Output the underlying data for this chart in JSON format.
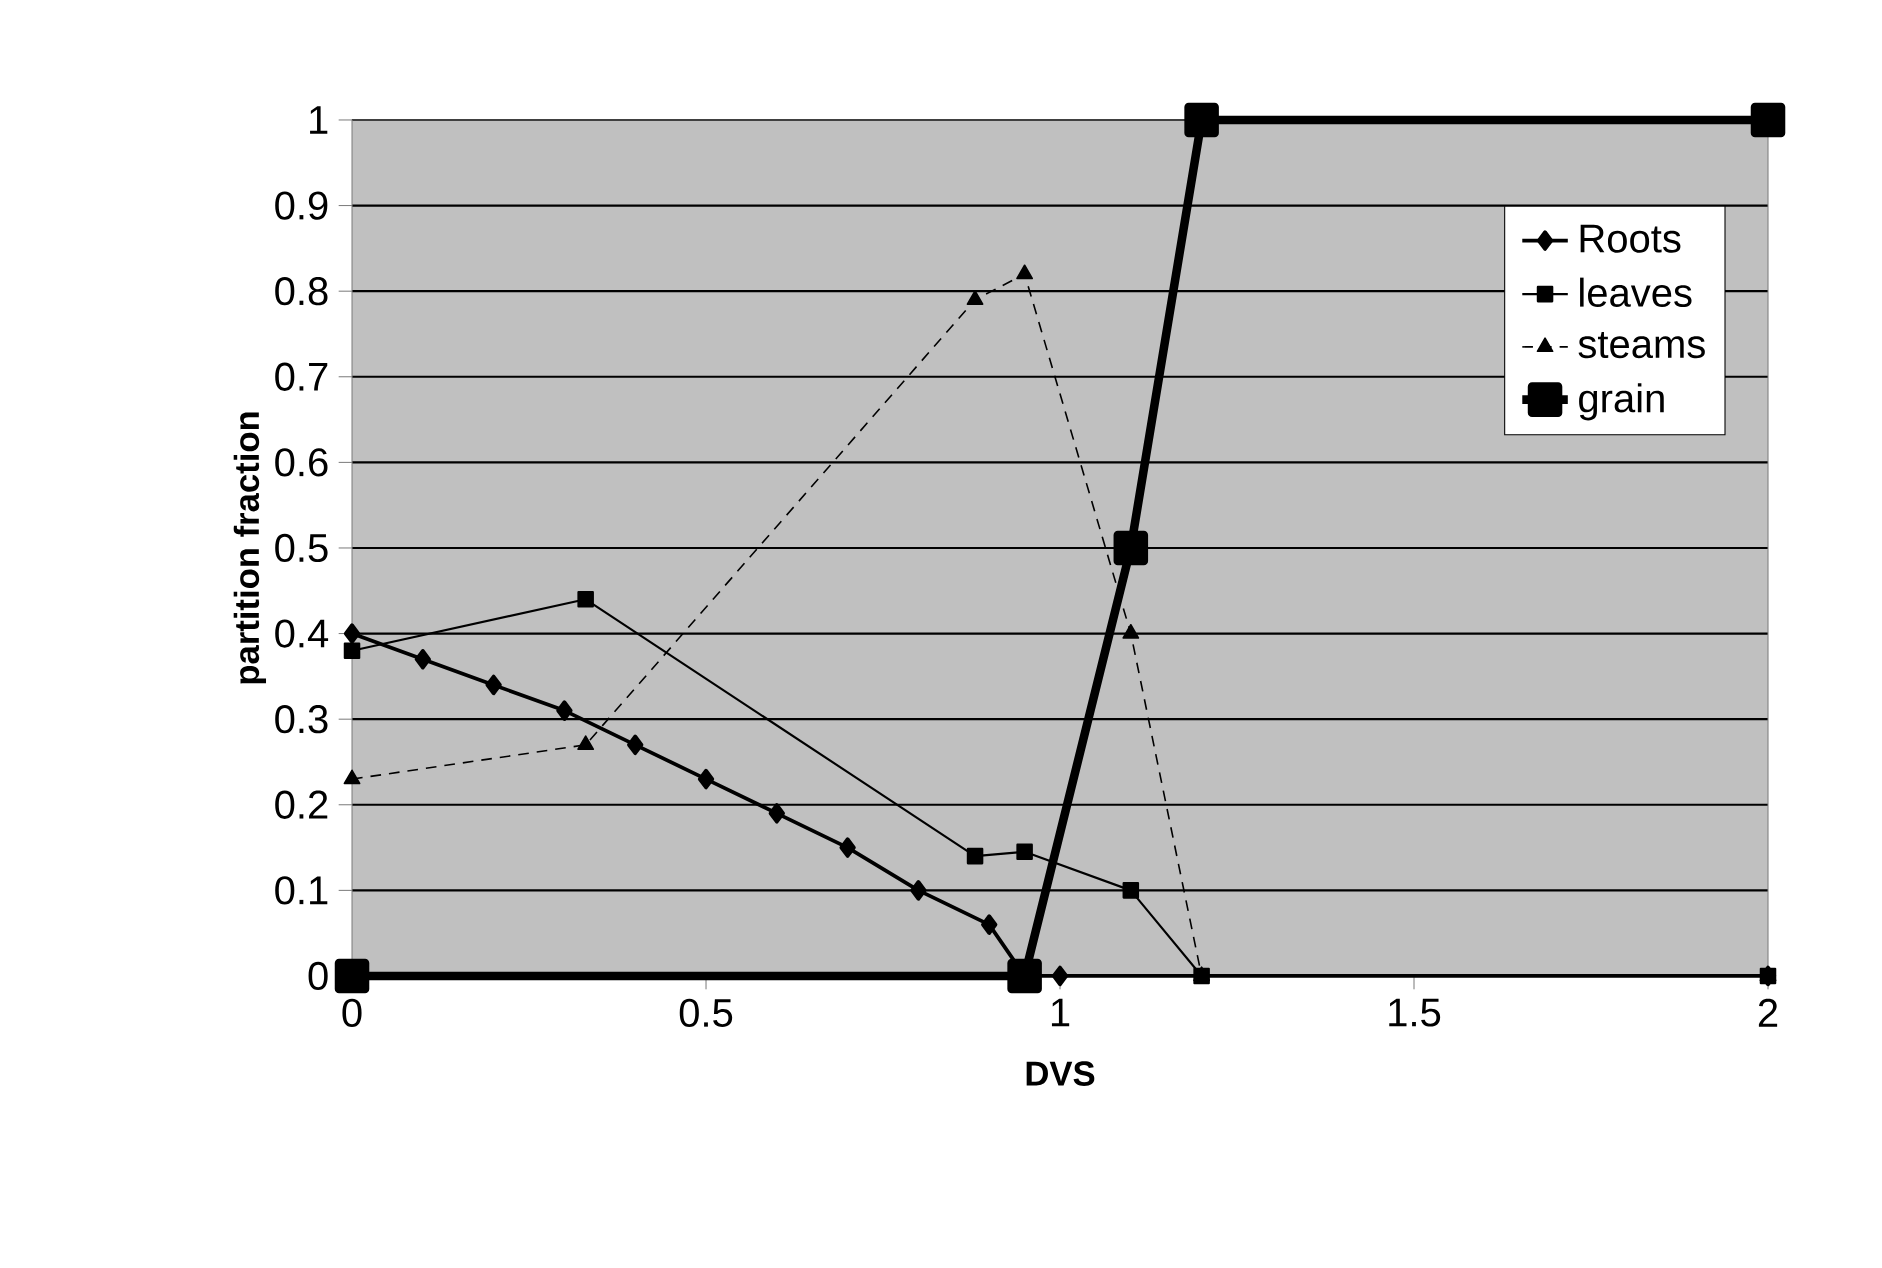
{
  "chart_data": {
    "type": "line",
    "xlabel": "DVS",
    "ylabel": "partition fraction",
    "xlim": [
      0,
      2
    ],
    "ylim": [
      0,
      1
    ],
    "xticks": [
      0,
      0.5,
      1,
      1.5,
      2
    ],
    "yticks": [
      0,
      0.1,
      0.2,
      0.3,
      0.4,
      0.5,
      0.6,
      0.7,
      0.8,
      0.9,
      1
    ],
    "grid": "y",
    "legend": "top right",
    "series": [
      {
        "name": "Roots",
        "color": "#000000",
        "marker": "diamond",
        "line_style": "solid",
        "x": [
          0,
          0.1,
          0.2,
          0.3,
          0.4,
          0.5,
          0.6,
          0.7,
          0.8,
          0.9,
          0.95,
          1.0,
          2
        ],
        "values": [
          0.4,
          0.37,
          0.34,
          0.31,
          0.27,
          0.23,
          0.19,
          0.15,
          0.1,
          0.06,
          0,
          0,
          0
        ]
      },
      {
        "name": "leaves",
        "color": "#000000",
        "marker": "square",
        "line_style": "solid",
        "x": [
          0,
          0.33,
          0.88,
          0.95,
          1.1,
          1.2,
          2
        ],
        "values": [
          0.38,
          0.44,
          0.14,
          0.145,
          0.1,
          0,
          0
        ]
      },
      {
        "name": "steams",
        "color": "#000000",
        "marker": "triangle",
        "line_style": "dashed",
        "x": [
          0,
          0.33,
          0.88,
          0.95,
          1.1,
          1.2,
          2
        ],
        "values": [
          0.23,
          0.27,
          0.79,
          0.82,
          0.4,
          0,
          0
        ]
      },
      {
        "name": "grain",
        "color": "#000000",
        "marker": "square",
        "line_style": "solid",
        "x": [
          0,
          0.95,
          1.1,
          1.2,
          2
        ],
        "values": [
          0,
          0,
          0.5,
          1,
          1
        ]
      }
    ]
  }
}
